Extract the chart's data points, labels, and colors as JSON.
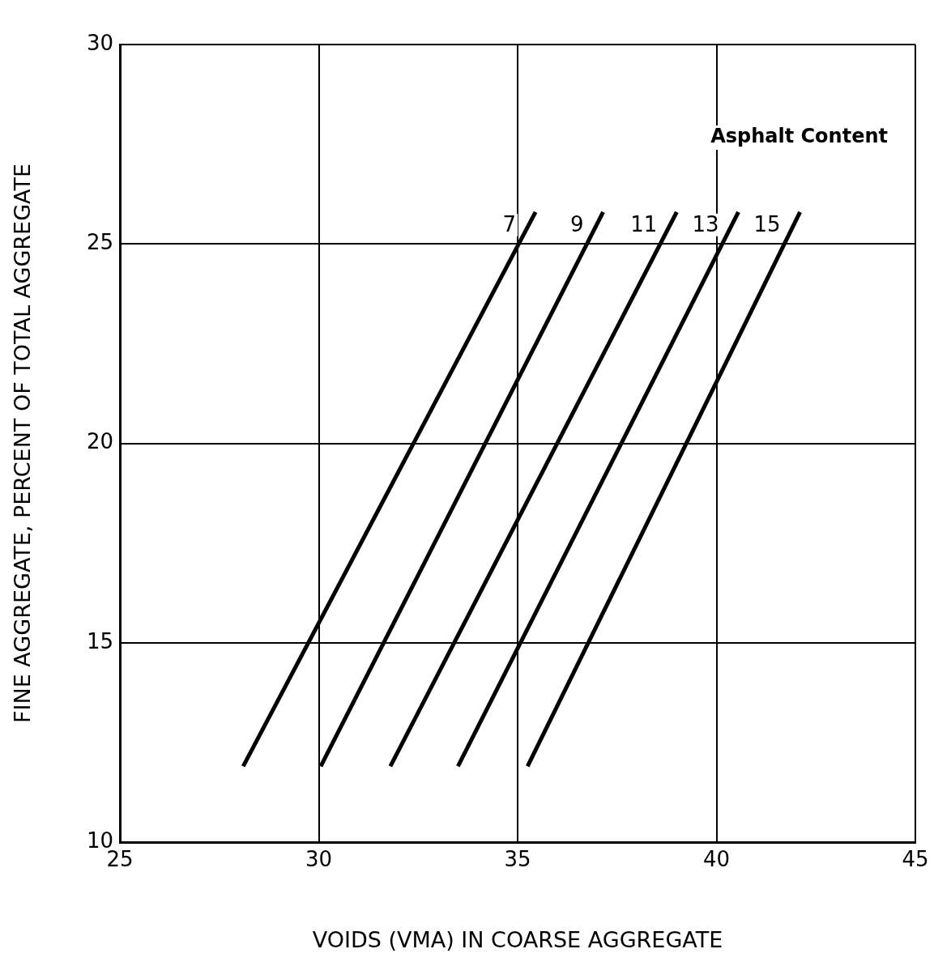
{
  "chart_data": {
    "type": "line",
    "xlabel": "VOIDS (VMA) IN COARSE AGGREGATE",
    "ylabel": "FINE AGGREGATE, PERCENT OF TOTAL AGGREGATE",
    "annotations": [
      "Asphalt Content"
    ],
    "xlim": [
      25,
      45
    ],
    "xticks": [
      25,
      30,
      35,
      40,
      45
    ],
    "ylim": [
      10,
      30
    ],
    "yticks": [
      10,
      15,
      20,
      25,
      30
    ],
    "grid": true,
    "legend": false,
    "marker": "none",
    "line_style": "solid",
    "series": [
      {
        "name": "7",
        "color": "#000000",
        "x": [
          28.1,
          35.45
        ],
        "values": [
          11.9,
          25.8
        ]
      },
      {
        "name": "9",
        "color": "#000000",
        "x": [
          30.05,
          37.15
        ],
        "values": [
          11.9,
          25.8
        ]
      },
      {
        "name": "11",
        "color": "#000000",
        "x": [
          31.8,
          39.0
        ],
        "values": [
          11.9,
          25.8
        ]
      },
      {
        "name": "13",
        "color": "#000000",
        "x": [
          33.5,
          40.55
        ],
        "values": [
          11.9,
          25.8
        ]
      },
      {
        "name": "15",
        "color": "#000000",
        "x": [
          35.25,
          42.1
        ],
        "values": [
          11.9,
          25.8
        ]
      }
    ]
  }
}
